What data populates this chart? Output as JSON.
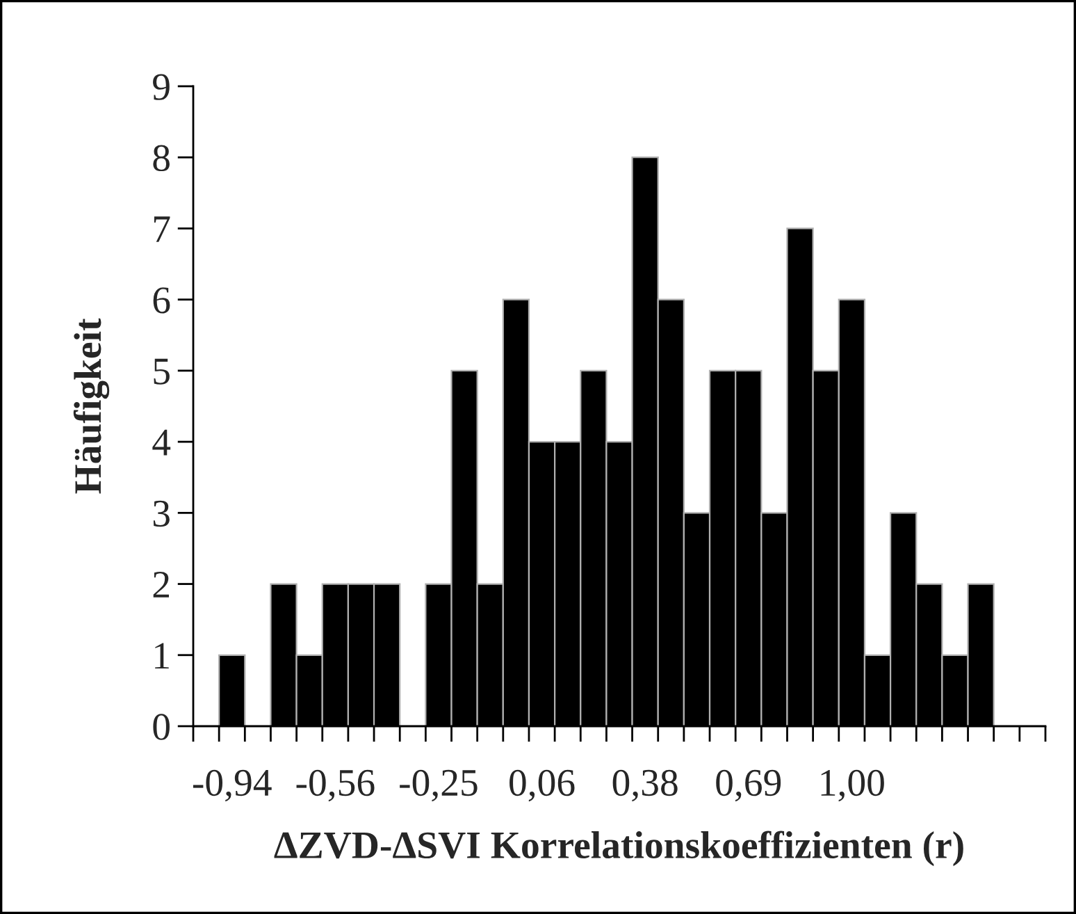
{
  "chart_data": {
    "type": "bar",
    "xlabel": "ΔZVD-ΔSVI Korrelationskoeffizienten (r)",
    "ylabel": "Häufigkeit",
    "categories": [
      null,
      "-0,94",
      null,
      null,
      null,
      "-0,56",
      null,
      null,
      null,
      "-0,25",
      null,
      null,
      null,
      "0,06",
      null,
      null,
      null,
      "0,38",
      null,
      null,
      null,
      "0,69",
      null,
      null,
      null,
      "1,00",
      null,
      null,
      null,
      null,
      null,
      null,
      null
    ],
    "values": [
      0,
      1,
      0,
      2,
      1,
      2,
      2,
      2,
      0,
      2,
      5,
      2,
      6,
      4,
      4,
      5,
      4,
      8,
      6,
      3,
      5,
      5,
      3,
      7,
      5,
      6,
      1,
      3,
      2,
      1,
      2,
      0,
      0
    ],
    "color": "#000000",
    "ylim": [
      0,
      9
    ],
    "yticks": [
      0,
      1,
      2,
      3,
      4,
      5,
      6,
      7,
      8,
      9
    ],
    "grid": false
  }
}
